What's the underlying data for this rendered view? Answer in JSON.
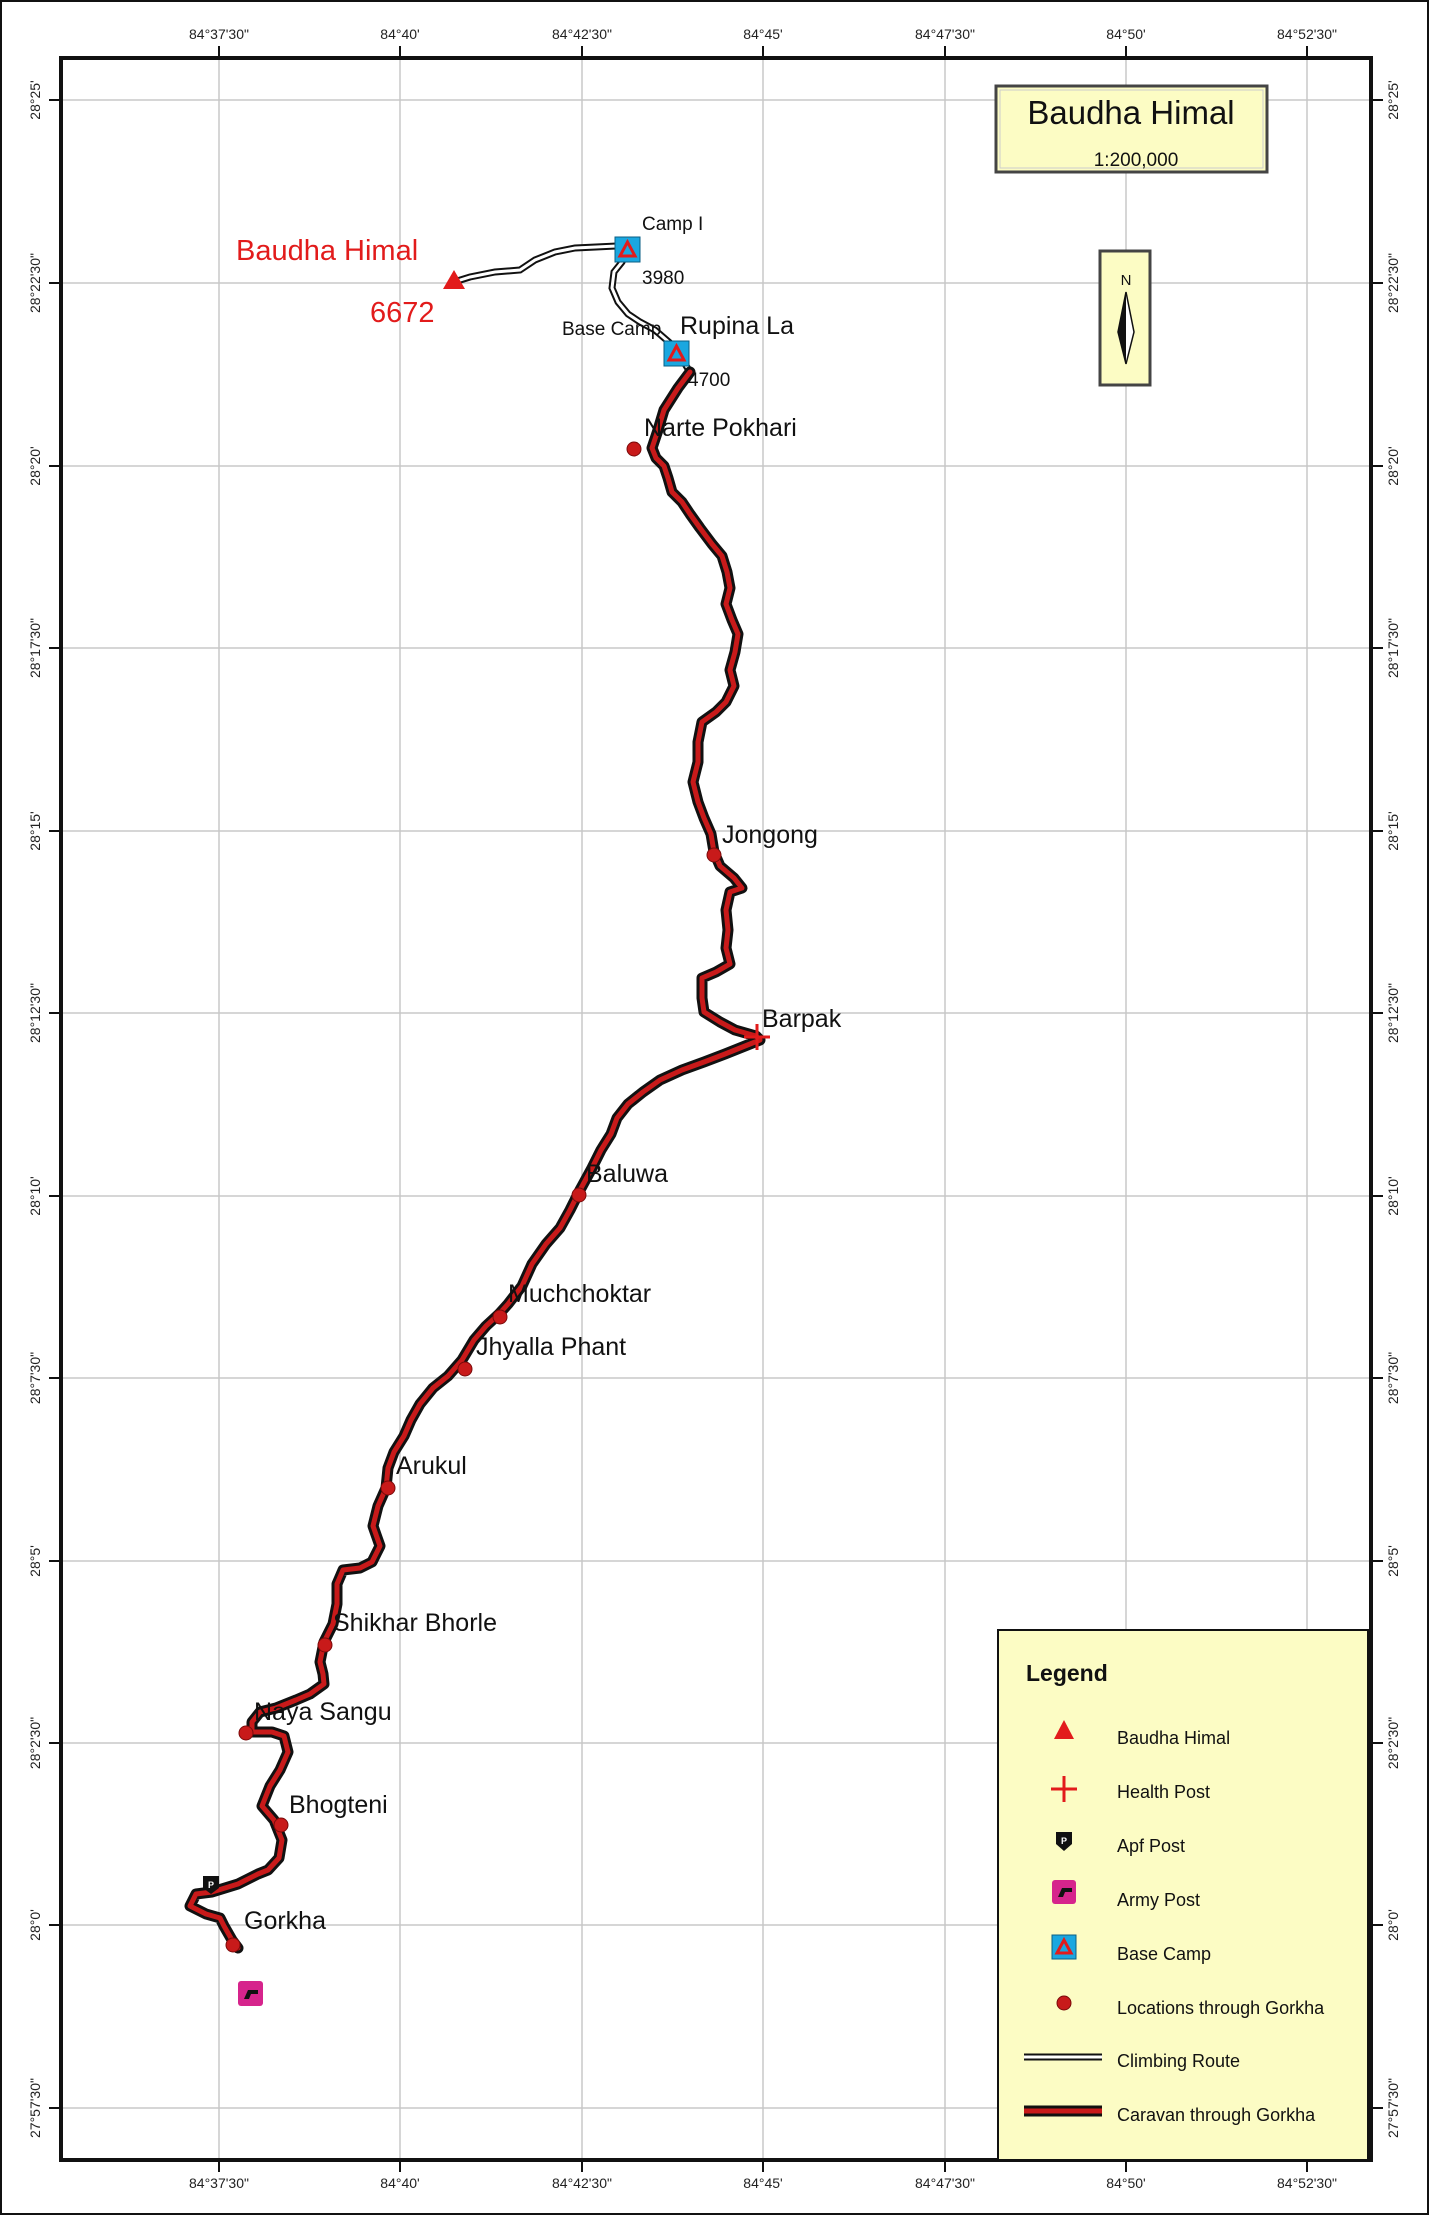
{
  "title_box": {
    "title": "Baudha Himal",
    "scale": "1:200,000"
  },
  "north_arrow": {
    "label": "N"
  },
  "top_coords": [
    "84°37'30\"",
    "84°40'",
    "84°42'30\"",
    "84°45'",
    "84°47'30\"",
    "84°50'",
    "84°52'30\""
  ],
  "bottom_coords": [
    "84°37'30\"",
    "84°40'",
    "84°42'30\"",
    "84°45'",
    "84°47'30\"",
    "84°50'",
    "84°52'30\""
  ],
  "left_coords": [
    "28°25'",
    "28°22'30\"",
    "28°20'",
    "28°17'30\"",
    "28°15'",
    "28°12'30\"",
    "28°10'",
    "28°7'30\"",
    "28°5'",
    "28°2'30\"",
    "28°0'",
    "27°57'30\""
  ],
  "right_coords": [
    "28°25'",
    "28°22'30\"",
    "28°20'",
    "28°17'30\"",
    "28°15'",
    "28°12'30\"",
    "28°10'",
    "28°7'30\"",
    "28°5'",
    "28°2'30\"",
    "28°0'",
    "27°57'30\""
  ],
  "peak": {
    "name": "Baudha Himal",
    "elevation": "6672"
  },
  "camps": {
    "camp1": {
      "name": "Camp I",
      "elevation": "3980"
    },
    "base": {
      "name": "Base Camp",
      "pass": "Rupina La",
      "elevation": "4700"
    }
  },
  "places": [
    "Narte Pokhari",
    "Jongong",
    "Barpak",
    "Baluwa",
    "Muchchoktar",
    "Jhyalla Phant",
    "Arukul",
    "Shikhar Bhorle",
    "Naya Sangu",
    "Bhogteni",
    "Gorkha"
  ],
  "legend": {
    "title": "Legend",
    "items": [
      "Baudha Himal",
      "Health Post",
      "Apf Post",
      "Army Post",
      "Base Camp",
      "Locations through Gorkha",
      "Climbing Route",
      "Caravan through Gorkha"
    ]
  },
  "colors": {
    "route_caravan": "#7a0a0a",
    "route_red": "#d01818",
    "symbol_red": "#e21b1b",
    "camp_blue": "#1aa7e0",
    "army_pink": "#d6248c",
    "panel_fill": "#fcfcc4",
    "grid": "#c8c8c8"
  }
}
